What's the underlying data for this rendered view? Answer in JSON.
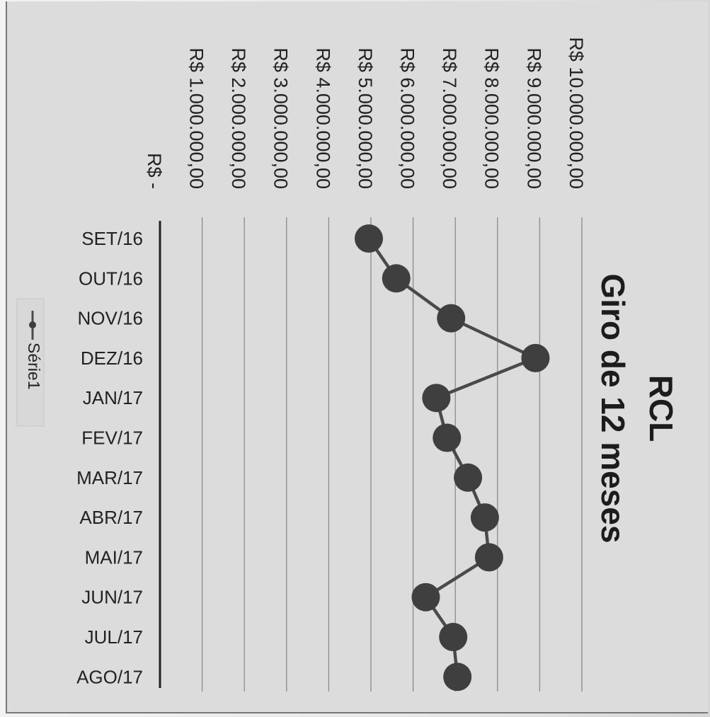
{
  "chart_data": {
    "type": "line",
    "title": [
      "RCL",
      "Giro de 12 meses"
    ],
    "categories": [
      "SET/16",
      "OUT/16",
      "NOV/16",
      "DEZ/16",
      "JAN/17",
      "FEV/17",
      "MAR/17",
      "ABR/17",
      "MAI/17",
      "JUN/17",
      "JUL/17",
      "AGO/17"
    ],
    "series": [
      {
        "name": "Série1",
        "values": [
          4950000,
          5600000,
          6900000,
          8900000,
          6550000,
          6800000,
          7300000,
          7700000,
          7800000,
          6300000,
          6950000,
          7050000
        ]
      }
    ],
    "y_tick_labels": [
      "R$ -",
      "R$ 1.000.000,00",
      "R$ 2.000.000,00",
      "R$ 3.000.000,00",
      "R$ 4.000.000,00",
      "R$ 5.000.000,00",
      "R$ 6.000.000,00",
      "R$ 7.000.000,00",
      "R$ 8.000.000,00",
      "R$ 9.000.000,00",
      "R$ 10.000.000,00"
    ],
    "ylim": [
      0,
      10000000
    ],
    "xlabel": "",
    "ylabel": "",
    "grid": true,
    "legend": "left",
    "orientation": "page rotated 90° clockwise",
    "colors": {
      "line": "#4a4a4a",
      "marker": "#3f3f3f",
      "grid": "#8a8a8a"
    }
  }
}
